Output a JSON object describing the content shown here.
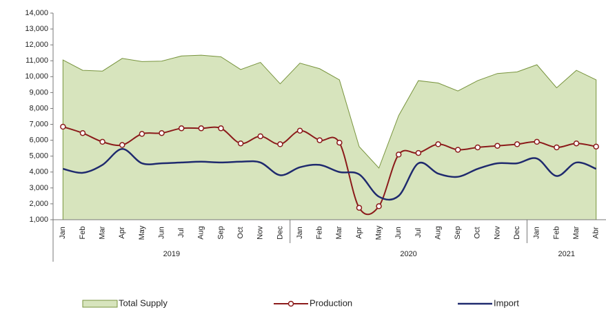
{
  "chart_data": {
    "type": "area-line",
    "categories": [
      "Jan",
      "Feb",
      "Mar",
      "Apr",
      "May",
      "Jun",
      "Jul",
      "Aug",
      "Sep",
      "Oct",
      "Nov",
      "Dec",
      "Jan",
      "Feb",
      "Mar",
      "Apr",
      "May",
      "Jun",
      "Jul",
      "Aug",
      "Sep",
      "Oct",
      "Nov",
      "Dec",
      "Jan",
      "Feb",
      "Mar",
      "Abr"
    ],
    "groups": [
      {
        "label": "2019",
        "span": 12
      },
      {
        "label": "2020",
        "span": 12
      },
      {
        "label": "2021",
        "span": 4
      }
    ],
    "series": [
      {
        "name": "Total Supply",
        "kind": "area",
        "color": "#d7e4bd",
        "values": [
          11050,
          10400,
          10350,
          11150,
          10950,
          10980,
          11300,
          11350,
          11250,
          10450,
          10900,
          9550,
          10850,
          10500,
          9800,
          5600,
          4250,
          7550,
          9750,
          9600,
          9100,
          9750,
          10200,
          10300,
          10750,
          9300,
          10400,
          9800
        ]
      },
      {
        "name": "Production",
        "kind": "line",
        "color": "#8b1a1a",
        "values": [
          6850,
          6450,
          5900,
          5700,
          6400,
          6450,
          6750,
          6750,
          6750,
          5800,
          6250,
          5750,
          6600,
          6000,
          5850,
          1750,
          1850,
          5100,
          5200,
          5750,
          5400,
          5550,
          5650,
          5750,
          5900,
          5550,
          5800,
          5600
        ]
      },
      {
        "name": "Import",
        "kind": "line",
        "color": "#1f2a6e",
        "values": [
          4200,
          3950,
          4450,
          5450,
          4550,
          4550,
          4600,
          4650,
          4600,
          4650,
          4600,
          3800,
          4300,
          4450,
          4000,
          3850,
          2450,
          2500,
          4550,
          3900,
          3700,
          4200,
          4550,
          4550,
          4850,
          3750,
          4600,
          4200
        ]
      }
    ],
    "ylim": [
      1000,
      14000
    ],
    "yticks": [
      {
        "value": 1000,
        "label": "1,000"
      },
      {
        "value": 2000,
        "label": "2,000"
      },
      {
        "value": 3000,
        "label": "3,000"
      },
      {
        "value": 4000,
        "label": "4,000"
      },
      {
        "value": 5000,
        "label": "5,000"
      },
      {
        "value": 6000,
        "label": "6,000"
      },
      {
        "value": 7000,
        "label": "7,000"
      },
      {
        "value": 8000,
        "label": "8,000"
      },
      {
        "value": 9000,
        "label": "9,000"
      },
      {
        "value": 10000,
        "label": "10,000"
      },
      {
        "value": 11000,
        "label": "11,000"
      },
      {
        "value": 12000,
        "label": "12,000"
      },
      {
        "value": 13000,
        "label": "13,000"
      },
      {
        "value": 14000,
        "label": "14,000"
      }
    ],
    "grid": false,
    "legend": "bottom"
  }
}
